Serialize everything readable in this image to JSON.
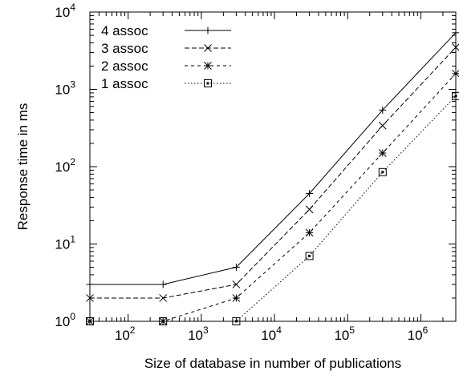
{
  "chart_data": {
    "type": "line",
    "xlabel": "Size of database in number of publications",
    "ylabel": "Response time in ms",
    "xscale": "log",
    "yscale": "log",
    "xlim": [
      30,
      3000000
    ],
    "ylim": [
      1,
      10000
    ],
    "x_ticks": [
      {
        "base": "10",
        "exp": "2",
        "value": 100
      },
      {
        "base": "10",
        "exp": "3",
        "value": 1000
      },
      {
        "base": "10",
        "exp": "4",
        "value": 10000
      },
      {
        "base": "10",
        "exp": "5",
        "value": 100000
      },
      {
        "base": "10",
        "exp": "6",
        "value": 1000000
      }
    ],
    "y_ticks": [
      {
        "base": "10",
        "exp": "0",
        "value": 1
      },
      {
        "base": "10",
        "exp": "1",
        "value": 10
      },
      {
        "base": "10",
        "exp": "2",
        "value": 100
      },
      {
        "base": "10",
        "exp": "3",
        "value": 1000
      },
      {
        "base": "10",
        "exp": "4",
        "value": 10000
      }
    ],
    "legend_position": "top-left",
    "grid": false,
    "series": [
      {
        "name": "4 assoc",
        "marker": "plus",
        "dash": "solid",
        "x": [
          30,
          300,
          3000,
          30000,
          300000,
          3000000
        ],
        "y": [
          3,
          3,
          5,
          45,
          540,
          5400
        ]
      },
      {
        "name": "3 assoc",
        "marker": "cross",
        "dash": "dashed",
        "x": [
          30,
          300,
          3000,
          30000,
          300000,
          3000000
        ],
        "y": [
          2,
          2,
          3,
          28,
          340,
          3500
        ]
      },
      {
        "name": "2 assoc",
        "marker": "star",
        "dash": "short-dashed",
        "x": [
          30,
          300,
          3000,
          30000,
          300000,
          3000000
        ],
        "y": [
          1,
          1,
          2,
          14,
          150,
          1600
        ]
      },
      {
        "name": "1 assoc",
        "marker": "square",
        "dash": "dotted",
        "x": [
          30,
          300,
          3000,
          30000,
          300000,
          3000000
        ],
        "y": [
          1,
          1,
          1,
          7,
          85,
          820
        ]
      }
    ]
  }
}
